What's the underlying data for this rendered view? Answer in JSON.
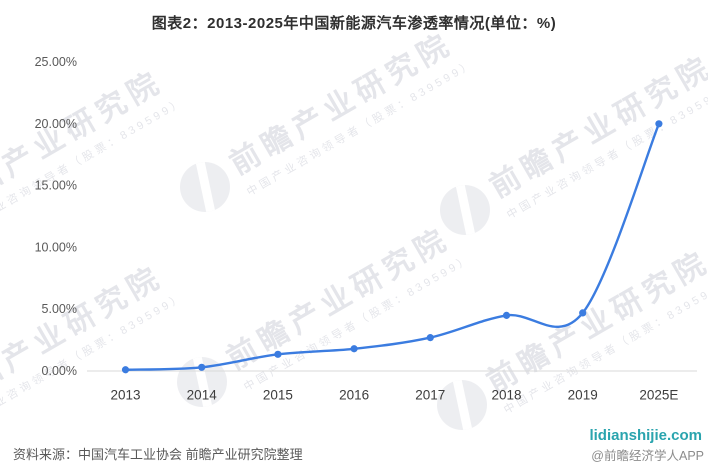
{
  "title": "图表2：2013-2025年中国新能源汽车渗透率情况(单位：%)",
  "chart_data": {
    "type": "line",
    "title": "图表2：2013-2025年中国新能源汽车渗透率情况(单位：%)",
    "unit": "%",
    "categories": [
      "2013",
      "2014",
      "2015",
      "2016",
      "2017",
      "2018",
      "2019",
      "2025E"
    ],
    "values": [
      0.1,
      0.3,
      1.35,
      1.8,
      2.7,
      4.5,
      4.7,
      20.0
    ],
    "xlabel": "",
    "ylabel": "",
    "ylim": [
      0,
      25
    ],
    "y_tick_labels": [
      "25.00%",
      "20.00%",
      "15.00%",
      "10.00%",
      "5.00%",
      "0.00%"
    ],
    "grid": false,
    "legend": "none",
    "smooth": true,
    "marker": "circle"
  },
  "watermark": {
    "main": "前瞻产业研究院",
    "caption": "中国产业咨询领导者（股票：839599）"
  },
  "footer": {
    "source": "资料来源：中国汽车工业协会 前瞻产业研究院整理",
    "site": "lidianshijie.com",
    "handle": "@前瞻经济学人APP"
  },
  "colors": {
    "line": "#3b7ce0",
    "axis_line": "#d9d9d9",
    "y_tick_text": "#595959",
    "x_tick_text": "#3d3d3d",
    "site_link": "#2aa4ae"
  }
}
